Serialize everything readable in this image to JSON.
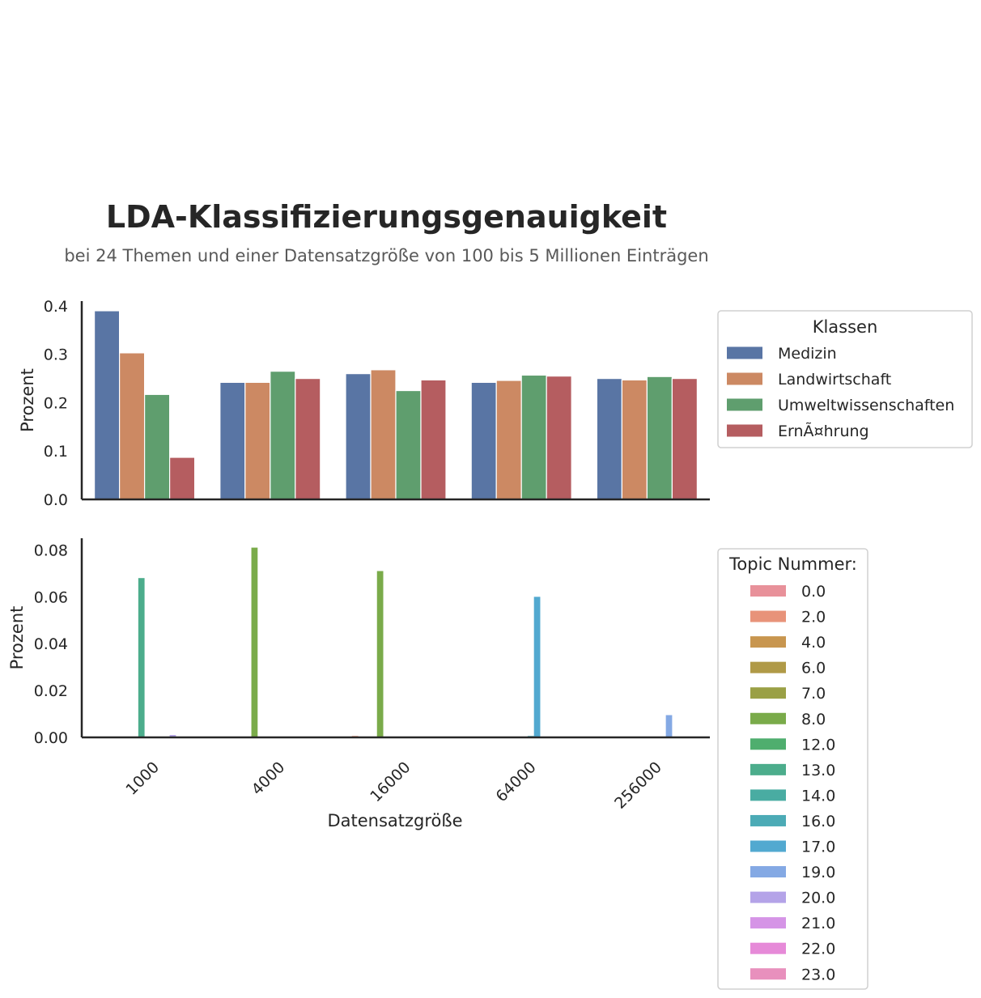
{
  "title": "LDA-Klassifizierungsgenauigkeit",
  "subtitle": "bei 24 Themen und einer Datensatzgröße von 100 bis 5 Millionen Einträgen",
  "chart_data": [
    {
      "type": "bar",
      "ylabel": "Prozent",
      "xlabel": "",
      "ylim": [
        0,
        0.41
      ],
      "yticks": [
        "0.0",
        "0.1",
        "0.2",
        "0.3",
        "0.4"
      ],
      "categories": [
        "1000",
        "4000",
        "16000",
        "64000",
        "256000"
      ],
      "legend": {
        "title": "Klassen",
        "placement": "right"
      },
      "series": [
        {
          "name": "Medizin",
          "color": "#5975a4",
          "values": [
            0.39,
            0.242,
            0.26,
            0.242,
            0.25
          ]
        },
        {
          "name": "Landwirtschaft",
          "color": "#cc8963",
          "values": [
            0.303,
            0.242,
            0.268,
            0.246,
            0.247
          ]
        },
        {
          "name": "Umweltwissenschaften",
          "color": "#5f9e6e",
          "values": [
            0.217,
            0.265,
            0.225,
            0.257,
            0.254
          ]
        },
        {
          "name": "ErnÃ¤hrung",
          "color": "#b55d60",
          "values": [
            0.087,
            0.25,
            0.247,
            0.255,
            0.25
          ]
        }
      ]
    },
    {
      "type": "bar",
      "ylabel": "Prozent",
      "xlabel": "Datensatzgröße",
      "ylim": [
        0,
        0.085
      ],
      "yticks": [
        "0.00",
        "0.02",
        "0.04",
        "0.06",
        "0.08"
      ],
      "categories": [
        "1000",
        "4000",
        "16000",
        "64000",
        "256000"
      ],
      "legend": {
        "title": "Topic Nummer:",
        "placement": "right"
      },
      "series": [
        {
          "name": "0.0",
          "color": "#e8919a",
          "values": [
            0,
            0,
            0,
            0,
            0
          ]
        },
        {
          "name": "2.0",
          "color": "#e8937a",
          "values": [
            0,
            0,
            0.0006,
            0,
            0
          ]
        },
        {
          "name": "4.0",
          "color": "#c8964f",
          "values": [
            0,
            0,
            0,
            0,
            0
          ]
        },
        {
          "name": "6.0",
          "color": "#b09a47",
          "values": [
            0,
            0,
            0,
            0,
            0
          ]
        },
        {
          "name": "7.0",
          "color": "#9aa045",
          "values": [
            0,
            0,
            0,
            0,
            0
          ]
        },
        {
          "name": "8.0",
          "color": "#7aab4a",
          "values": [
            0,
            0.081,
            0.071,
            0,
            0
          ]
        },
        {
          "name": "12.0",
          "color": "#4fae6e",
          "values": [
            0,
            0,
            0,
            0,
            0
          ]
        },
        {
          "name": "13.0",
          "color": "#4cad8c",
          "values": [
            0.068,
            0,
            0,
            0,
            0
          ]
        },
        {
          "name": "14.0",
          "color": "#49aca2",
          "values": [
            0,
            0,
            0,
            0,
            0
          ]
        },
        {
          "name": "16.0",
          "color": "#4cabb6",
          "values": [
            0,
            0,
            0,
            0.0006,
            0
          ]
        },
        {
          "name": "17.0",
          "color": "#52a9d0",
          "values": [
            0,
            0,
            0,
            0.06,
            0
          ]
        },
        {
          "name": "19.0",
          "color": "#84a9e4",
          "values": [
            0,
            0,
            0,
            0,
            0.0095
          ]
        },
        {
          "name": "20.0",
          "color": "#b4a3e8",
          "values": [
            0.001,
            0,
            0,
            0,
            0
          ]
        },
        {
          "name": "21.0",
          "color": "#d594e6",
          "values": [
            0,
            0,
            0,
            0,
            0
          ]
        },
        {
          "name": "22.0",
          "color": "#e68ad8",
          "values": [
            0,
            0,
            0,
            0,
            0
          ]
        },
        {
          "name": "23.0",
          "color": "#e890bd",
          "values": [
            0,
            0,
            0,
            0,
            0
          ]
        }
      ]
    }
  ]
}
